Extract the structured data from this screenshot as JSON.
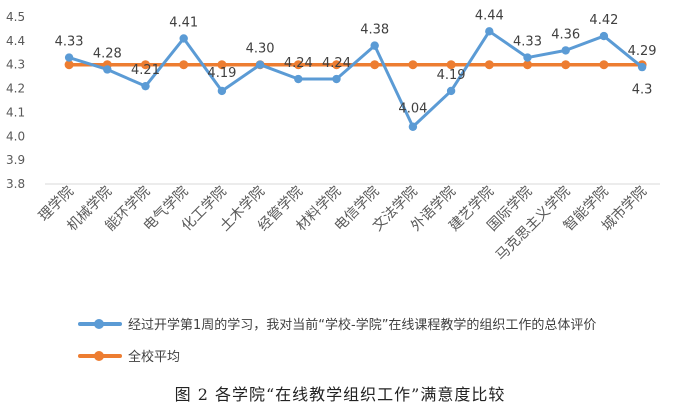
{
  "chart_data": {
    "type": "line",
    "categories": [
      "理学院",
      "机械学院",
      "能环学院",
      "电气学院",
      "化工学院",
      "土木学院",
      "经管学院",
      "材料学院",
      "电信学院",
      "文法学院",
      "外语学院",
      "建艺学院",
      "国际学院",
      "马克思主义学院",
      "智能学院",
      "城市学院"
    ],
    "series": [
      {
        "name": "经过开学第1周的学习，我对当前“学校-学院”在线课程教学的组织工作的总体评价",
        "values": [
          4.33,
          4.28,
          4.21,
          4.41,
          4.19,
          4.3,
          4.24,
          4.24,
          4.38,
          4.04,
          4.19,
          4.44,
          4.33,
          4.36,
          4.42,
          4.29
        ],
        "labels": [
          "4.33",
          "4.28",
          "4.21",
          "4.41",
          "4.19",
          "4.30",
          "4.24",
          "4.24",
          "4.38",
          "4.04",
          "4.19",
          "4.44",
          "4.33",
          "4.36",
          "4.42",
          "4.29"
        ],
        "color": "#5b9bd5"
      },
      {
        "name": "全校平均",
        "values": [
          4.3,
          4.3,
          4.3,
          4.3,
          4.3,
          4.3,
          4.3,
          4.3,
          4.3,
          4.3,
          4.3,
          4.3,
          4.3,
          4.3,
          4.3,
          4.3
        ],
        "end_label": "4.3",
        "color": "#ed7d31"
      }
    ],
    "ylim": [
      3.8,
      4.5
    ],
    "yticks": [
      "3.8",
      "3.9",
      "4.0",
      "4.1",
      "4.2",
      "4.3",
      "4.4",
      "4.5"
    ],
    "grid": false,
    "legend_position": "bottom-left"
  },
  "caption": "图 2 各学院“在线教学组织工作”满意度比较"
}
